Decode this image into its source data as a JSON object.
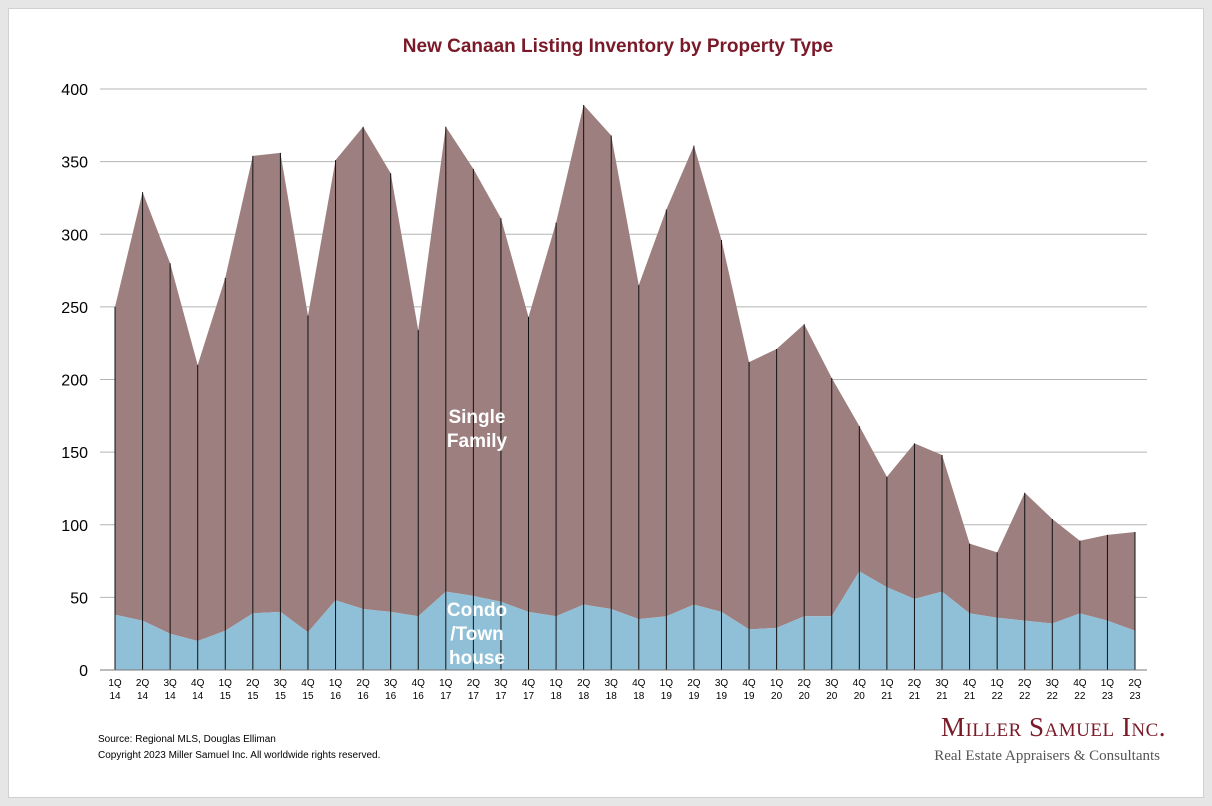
{
  "chart_data": {
    "type": "area",
    "stacked": true,
    "title": "New Canaan Listing Inventory by Property Type",
    "xlabel": "",
    "ylabel": "",
    "ylim": [
      0,
      400
    ],
    "yticks": [
      0,
      50,
      100,
      150,
      200,
      250,
      300,
      350,
      400
    ],
    "grid": true,
    "categories": [
      [
        "1Q",
        "14"
      ],
      [
        "2Q",
        "14"
      ],
      [
        "3Q",
        "14"
      ],
      [
        "4Q",
        "14"
      ],
      [
        "1Q",
        "15"
      ],
      [
        "2Q",
        "15"
      ],
      [
        "3Q",
        "15"
      ],
      [
        "4Q",
        "15"
      ],
      [
        "1Q",
        "16"
      ],
      [
        "2Q",
        "16"
      ],
      [
        "3Q",
        "16"
      ],
      [
        "4Q",
        "16"
      ],
      [
        "1Q",
        "17"
      ],
      [
        "2Q",
        "17"
      ],
      [
        "3Q",
        "17"
      ],
      [
        "4Q",
        "17"
      ],
      [
        "1Q",
        "18"
      ],
      [
        "2Q",
        "18"
      ],
      [
        "3Q",
        "18"
      ],
      [
        "4Q",
        "18"
      ],
      [
        "1Q",
        "19"
      ],
      [
        "2Q",
        "19"
      ],
      [
        "3Q",
        "19"
      ],
      [
        "4Q",
        "19"
      ],
      [
        "1Q",
        "20"
      ],
      [
        "2Q",
        "20"
      ],
      [
        "3Q",
        "20"
      ],
      [
        "4Q",
        "20"
      ],
      [
        "1Q",
        "21"
      ],
      [
        "2Q",
        "21"
      ],
      [
        "3Q",
        "21"
      ],
      [
        "4Q",
        "21"
      ],
      [
        "1Q",
        "22"
      ],
      [
        "2Q",
        "22"
      ],
      [
        "3Q",
        "22"
      ],
      [
        "4Q",
        "22"
      ],
      [
        "1Q",
        "23"
      ],
      [
        "2Q",
        "23"
      ]
    ],
    "series": [
      {
        "name": "Condo\n/Town\nhouse",
        "color": "#8fc0d7",
        "values": [
          38,
          34,
          25,
          20,
          27,
          39,
          40,
          26,
          48,
          42,
          40,
          37,
          54,
          51,
          47,
          40,
          37,
          45,
          42,
          35,
          37,
          45,
          40,
          28,
          29,
          37,
          37,
          68,
          57,
          49,
          54,
          39,
          36,
          34,
          32,
          39,
          34,
          27
        ]
      },
      {
        "name": "Single\nFamily",
        "color": "#9d7f7f",
        "values": [
          212,
          295,
          255,
          190,
          243,
          315,
          316,
          218,
          303,
          332,
          302,
          197,
          320,
          294,
          264,
          203,
          271,
          344,
          326,
          230,
          280,
          316,
          256,
          184,
          192,
          201,
          164,
          100,
          76,
          107,
          94,
          48,
          45,
          88,
          72,
          50,
          59,
          68
        ]
      }
    ],
    "totals": [
      250,
      329,
      280,
      210,
      270,
      354,
      356,
      244,
      351,
      374,
      342,
      234,
      374,
      345,
      311,
      243,
      308,
      389,
      368,
      265,
      317,
      361,
      296,
      212,
      221,
      238,
      201,
      168,
      133,
      156,
      148,
      87,
      81,
      122,
      104,
      89,
      93,
      95
    ],
    "series_labels": {
      "single_family": [
        "Single",
        "Family"
      ],
      "condo": [
        "Condo",
        "/Town",
        "house"
      ]
    }
  },
  "footer": {
    "source": "Source: Regional MLS, Douglas Elliman",
    "copyright": "Copyright 2023 Miller Samuel Inc.  All worldwide rights reserved."
  },
  "logo": {
    "name": "Miller Samuel Inc.",
    "tagline": "Real Estate Appraisers & Consultants"
  }
}
